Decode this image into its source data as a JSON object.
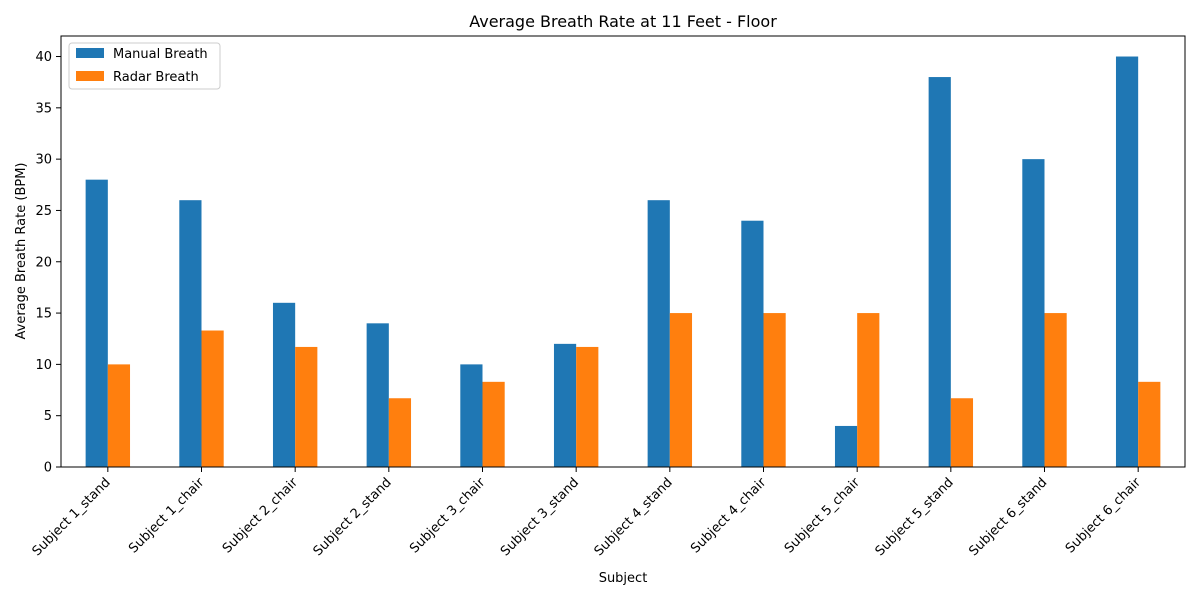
{
  "chart_data": {
    "type": "bar",
    "title": "Average Breath Rate at 11 Feet - Floor",
    "xlabel": "Subject",
    "ylabel": "Average Breath Rate (BPM)",
    "ylim": [
      0,
      42
    ],
    "yticks": [
      0,
      5,
      10,
      15,
      20,
      25,
      30,
      35,
      40
    ],
    "grid": false,
    "legend_position": "top-left",
    "categories": [
      "Subject 1_stand",
      "Subject 1_chair",
      "Subject 2_chair",
      "Subject 2_stand",
      "Subject 3_chair",
      "Subject 3_stand",
      "Subject 4_stand",
      "Subject 4_chair",
      "Subject 5_chair",
      "Subject 5_stand",
      "Subject 6_stand",
      "Subject 6_chair"
    ],
    "series": [
      {
        "name": "Manual Breath",
        "color": "#1f77b4",
        "values": [
          28,
          26,
          16,
          14,
          10,
          12,
          26,
          24,
          4,
          38,
          30,
          40
        ]
      },
      {
        "name": "Radar Breath",
        "color": "#ff7f0e",
        "values": [
          10,
          13.3,
          11.7,
          6.7,
          8.3,
          11.7,
          15,
          15,
          15,
          6.7,
          15,
          8.3
        ]
      }
    ]
  }
}
